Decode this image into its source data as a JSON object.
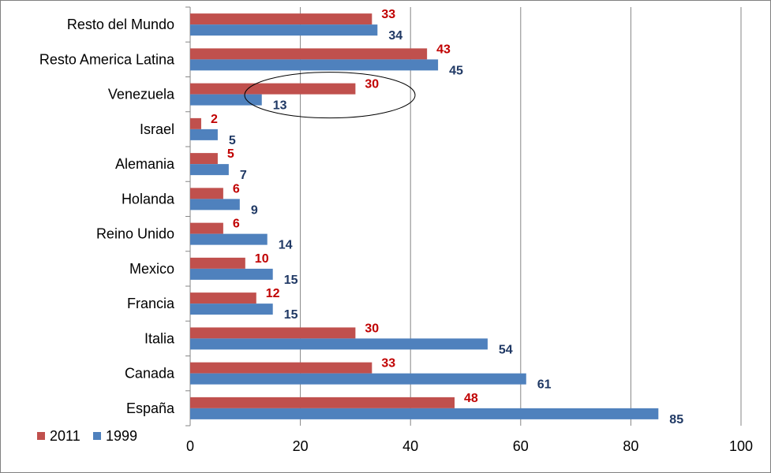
{
  "chart_data": {
    "type": "bar",
    "orientation": "horizontal",
    "title": "",
    "xlabel": "",
    "ylabel": "",
    "categories": [
      "Resto del Mundo",
      "Resto America Latina",
      "Venezuela",
      "Israel",
      "Alemania",
      "Holanda",
      "Reino Unido",
      "Mexico",
      "Francia",
      "Italia",
      "Canada",
      "España"
    ],
    "series": [
      {
        "name": "2011",
        "color": "#C0504D",
        "label_color": "#C00000",
        "values": [
          33,
          43,
          30,
          2,
          5,
          6,
          6,
          10,
          12,
          30,
          33,
          48
        ]
      },
      {
        "name": "1999",
        "color": "#4F81BD",
        "label_color": "#1F3864",
        "values": [
          34,
          45,
          13,
          5,
          7,
          9,
          14,
          15,
          15,
          54,
          61,
          85
        ]
      }
    ],
    "xlim": [
      0,
      100
    ],
    "xticks": [
      "0",
      "20",
      "40",
      "60",
      "80",
      "100"
    ],
    "grid": "vertical",
    "legend": "bottom-left",
    "highlight": {
      "shape": "ellipse",
      "category": "Venezuela"
    }
  }
}
